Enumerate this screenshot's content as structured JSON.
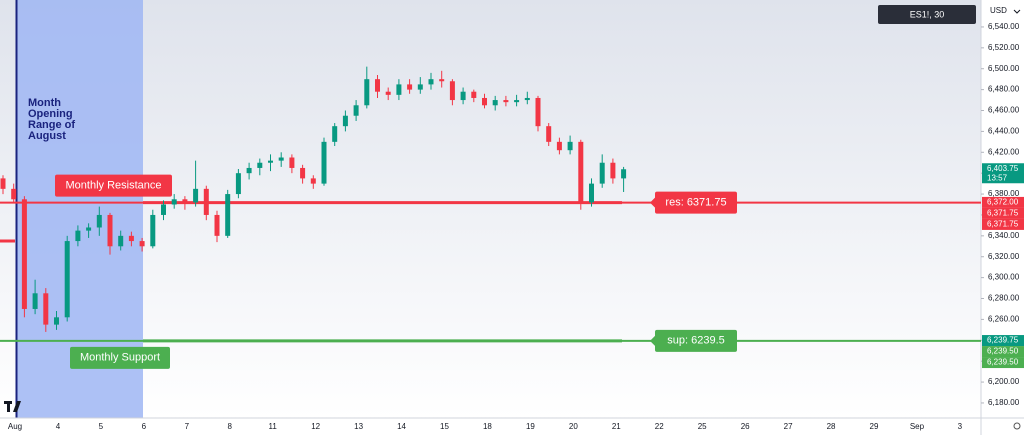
{
  "chart_data": {
    "type": "candlestick",
    "symbol": "ES1!, 30",
    "currency": "USD",
    "annotation": "Month Opening Range of August",
    "up_color": "#089981",
    "down_color": "#f23645",
    "ylim": [
      6165.6,
      6565.8
    ],
    "yticks": [
      {
        "value": 6180,
        "label": "6,180.00"
      },
      {
        "value": 6200,
        "label": "6,200.00"
      },
      {
        "value": 6220,
        "label": "6,220.00"
      },
      {
        "value": 6240,
        "label": "6,240.00"
      },
      {
        "value": 6260,
        "label": "6,260.00"
      },
      {
        "value": 6280,
        "label": "6,280.00"
      },
      {
        "value": 6300,
        "label": "6,300.00"
      },
      {
        "value": 6320,
        "label": "6,320.00"
      },
      {
        "value": 6340,
        "label": "6,340.00"
      },
      {
        "value": 6360,
        "label": "6,360.00"
      },
      {
        "value": 6380,
        "label": "6,380.00"
      },
      {
        "value": 6400,
        "label": "6,400.00"
      },
      {
        "value": 6420,
        "label": "6,420.00"
      },
      {
        "value": 6440,
        "label": "6,440.00"
      },
      {
        "value": 6460,
        "label": "6,460.00"
      },
      {
        "value": 6480,
        "label": "6,480.00"
      },
      {
        "value": 6500,
        "label": "6,500.00"
      },
      {
        "value": 6520,
        "label": "6,520.00"
      },
      {
        "value": 6540,
        "label": "6,540.00"
      }
    ],
    "categories": [
      "Aug",
      "4",
      "5",
      "6",
      "7",
      "8",
      "11",
      "12",
      "13",
      "14",
      "15",
      "18",
      "19",
      "20",
      "21",
      "22",
      "25",
      "26",
      "27",
      "28",
      "29",
      "Sep",
      "3"
    ],
    "ohlc": [
      [
        6395,
        6398,
        6380,
        6385
      ],
      [
        6385,
        6390,
        6372,
        6375
      ],
      [
        6375,
        6378,
        6262,
        6270
      ],
      [
        6270,
        6298,
        6265,
        6285
      ],
      [
        6285,
        6290,
        6248,
        6255
      ],
      [
        6255,
        6268,
        6250,
        6262
      ],
      [
        6262,
        6340,
        6258,
        6335
      ],
      [
        6335,
        6350,
        6330,
        6345
      ],
      [
        6345,
        6352,
        6338,
        6348
      ],
      [
        6348,
        6368,
        6340,
        6360
      ],
      [
        6360,
        6362,
        6322,
        6330
      ],
      [
        6330,
        6345,
        6326,
        6340
      ],
      [
        6340,
        6344,
        6330,
        6335
      ],
      [
        6335,
        6338,
        6325,
        6330
      ],
      [
        6330,
        6365,
        6328,
        6360
      ],
      [
        6360,
        6374,
        6355,
        6370
      ],
      [
        6370,
        6380,
        6366,
        6375
      ],
      [
        6375,
        6378,
        6365,
        6372
      ],
      [
        6372,
        6412,
        6368,
        6385
      ],
      [
        6385,
        6388,
        6355,
        6360
      ],
      [
        6360,
        6364,
        6334,
        6340
      ],
      [
        6340,
        6384,
        6338,
        6380
      ],
      [
        6380,
        6404,
        6376,
        6400
      ],
      [
        6400,
        6410,
        6394,
        6405
      ],
      [
        6405,
        6414,
        6398,
        6410
      ],
      [
        6410,
        6418,
        6402,
        6412
      ],
      [
        6412,
        6420,
        6406,
        6415
      ],
      [
        6415,
        6418,
        6400,
        6405
      ],
      [
        6405,
        6408,
        6390,
        6395
      ],
      [
        6395,
        6398,
        6385,
        6390
      ],
      [
        6390,
        6434,
        6388,
        6430
      ],
      [
        6430,
        6448,
        6426,
        6445
      ],
      [
        6445,
        6460,
        6440,
        6455
      ],
      [
        6455,
        6470,
        6450,
        6465
      ],
      [
        6465,
        6502,
        6462,
        6490
      ],
      [
        6490,
        6494,
        6472,
        6478
      ],
      [
        6478,
        6482,
        6470,
        6475
      ],
      [
        6475,
        6490,
        6470,
        6485
      ],
      [
        6485,
        6490,
        6476,
        6480
      ],
      [
        6480,
        6492,
        6476,
        6485
      ],
      [
        6485,
        6496,
        6480,
        6490
      ],
      [
        6490,
        6498,
        6482,
        6488
      ],
      [
        6488,
        6490,
        6465,
        6470
      ],
      [
        6470,
        6482,
        6466,
        6478
      ],
      [
        6478,
        6480,
        6468,
        6472
      ],
      [
        6472,
        6476,
        6462,
        6465
      ],
      [
        6465,
        6474,
        6460,
        6470
      ],
      [
        6470,
        6474,
        6464,
        6468
      ],
      [
        6468,
        6475,
        6464,
        6470
      ],
      [
        6470,
        6478,
        6466,
        6472
      ],
      [
        6472,
        6474,
        6440,
        6445
      ],
      [
        6445,
        6448,
        6426,
        6430
      ],
      [
        6430,
        6434,
        6418,
        6422
      ],
      [
        6422,
        6436,
        6418,
        6430
      ],
      [
        6430,
        6432,
        6365,
        6372
      ],
      [
        6372,
        6395,
        6368,
        6390
      ],
      [
        6390,
        6418,
        6386,
        6410
      ],
      [
        6410,
        6414,
        6390,
        6395
      ],
      [
        6395,
        6406,
        6382,
        6403.75
      ]
    ],
    "levels": [
      {
        "name": "Monthly Resistance",
        "value": 6371.75,
        "value_label": "res: 6371.75",
        "color": "#f23645"
      },
      {
        "name": "Monthly Support",
        "value": 6239.5,
        "value_label": "sup: 6239.5",
        "color": "#4caf50"
      }
    ],
    "axis_tags": [
      {
        "value": 6403.75,
        "label": "6,403.75",
        "time": "13:57",
        "color": "#089981"
      },
      {
        "value": 6372,
        "label": "6,372.00",
        "color": "#f23645"
      },
      {
        "value": 6371.75,
        "label": "6,371.75",
        "color": "#f23645"
      },
      {
        "value": 6371.75,
        "label": "6,371.75",
        "color": "#f23645"
      },
      {
        "value": 6239.75,
        "label": "6,239.75",
        "color": "#089981"
      },
      {
        "value": 6239.5,
        "label": "6,239.50",
        "color": "#4caf50"
      },
      {
        "value": 6239.5,
        "label": "6,239.50",
        "color": "#4caf50"
      }
    ]
  }
}
